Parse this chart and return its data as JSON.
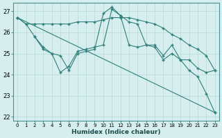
{
  "xlabel": "Humidex (Indice chaleur)",
  "bg_color": "#d6eeee",
  "grid_color": "#b8d8d8",
  "line_color": "#2e7f7a",
  "xlim": [
    -0.5,
    23.5
  ],
  "ylim": [
    21.8,
    27.4
  ],
  "yticks": [
    22,
    23,
    24,
    25,
    26,
    27
  ],
  "xticks": [
    0,
    1,
    2,
    3,
    4,
    5,
    6,
    7,
    8,
    9,
    10,
    11,
    12,
    13,
    14,
    15,
    16,
    17,
    18,
    19,
    20,
    21,
    22,
    23
  ],
  "line1_x": [
    0,
    1,
    2,
    3,
    4,
    5,
    6,
    7,
    8,
    9,
    10,
    11,
    12,
    13,
    14,
    15,
    16,
    17,
    18,
    19,
    20,
    21,
    22,
    23
  ],
  "line1_y": [
    26.7,
    26.4,
    26.4,
    26.4,
    26.4,
    26.4,
    26.4,
    26.5,
    26.5,
    26.5,
    26.6,
    26.7,
    26.7,
    26.7,
    26.6,
    26.5,
    26.4,
    26.2,
    25.9,
    25.7,
    25.4,
    25.2,
    24.9,
    24.2
  ],
  "line2_x": [
    0,
    1,
    2,
    3,
    4,
    5,
    6,
    7,
    8,
    9,
    10,
    11,
    12,
    13,
    14,
    15,
    16,
    17,
    18,
    19,
    20,
    21,
    22,
    23
  ],
  "line2_y": [
    26.7,
    26.4,
    25.8,
    25.3,
    25.0,
    24.9,
    24.2,
    25.0,
    25.1,
    25.2,
    26.9,
    27.2,
    26.8,
    26.5,
    26.4,
    25.4,
    25.4,
    24.9,
    25.4,
    24.7,
    24.7,
    24.3,
    24.1,
    24.2
  ],
  "line3_x": [
    2,
    3,
    4,
    5,
    6,
    7,
    8,
    9,
    10,
    11,
    12,
    13,
    14,
    15,
    16,
    17,
    18,
    19,
    20,
    21,
    22,
    23
  ],
  "line3_y": [
    25.8,
    25.2,
    25.0,
    24.1,
    24.4,
    25.1,
    25.2,
    25.3,
    25.4,
    27.1,
    26.8,
    25.4,
    25.3,
    25.4,
    25.3,
    24.7,
    25.0,
    24.7,
    24.2,
    23.9,
    23.1,
    22.2
  ],
  "line4_x": [
    0,
    23
  ],
  "line4_y": [
    26.7,
    22.2
  ]
}
